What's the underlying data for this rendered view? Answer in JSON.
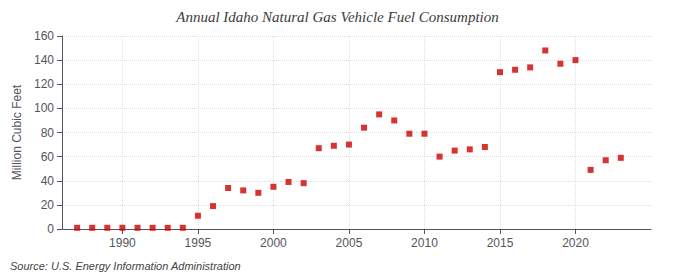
{
  "chart_data": {
    "type": "scatter",
    "title": "Annual Idaho Natural Gas Vehicle Fuel Consumption",
    "ylabel": "Million Cubic Feet",
    "annotations": [
      "Source: U.S. Energy Information Administration"
    ],
    "x": [
      1987,
      1988,
      1989,
      1990,
      1991,
      1992,
      1993,
      1994,
      1995,
      1996,
      1997,
      1998,
      1999,
      2000,
      2001,
      2002,
      2003,
      2004,
      2005,
      2006,
      2007,
      2008,
      2009,
      2010,
      2011,
      2012,
      2013,
      2014,
      2015,
      2016,
      2017,
      2018,
      2019,
      2020,
      2021,
      2022,
      2023
    ],
    "values": [
      1,
      1,
      1,
      1,
      1,
      1,
      1,
      1,
      11,
      19,
      34,
      32,
      30,
      35,
      39,
      38,
      67,
      69,
      70,
      84,
      95,
      90,
      79,
      79,
      60,
      65,
      66,
      68,
      130,
      132,
      134,
      148,
      137,
      140,
      49,
      57,
      59
    ],
    "color": "#cc0000",
    "marker": "square",
    "xlim": [
      1986,
      2025
    ],
    "xticks": [
      1990,
      1995,
      2000,
      2005,
      2010,
      2015,
      2020
    ],
    "ylim": [
      0,
      160
    ],
    "yticks": [
      0,
      20,
      40,
      60,
      80,
      100,
      120,
      140,
      160
    ],
    "grid": true
  }
}
